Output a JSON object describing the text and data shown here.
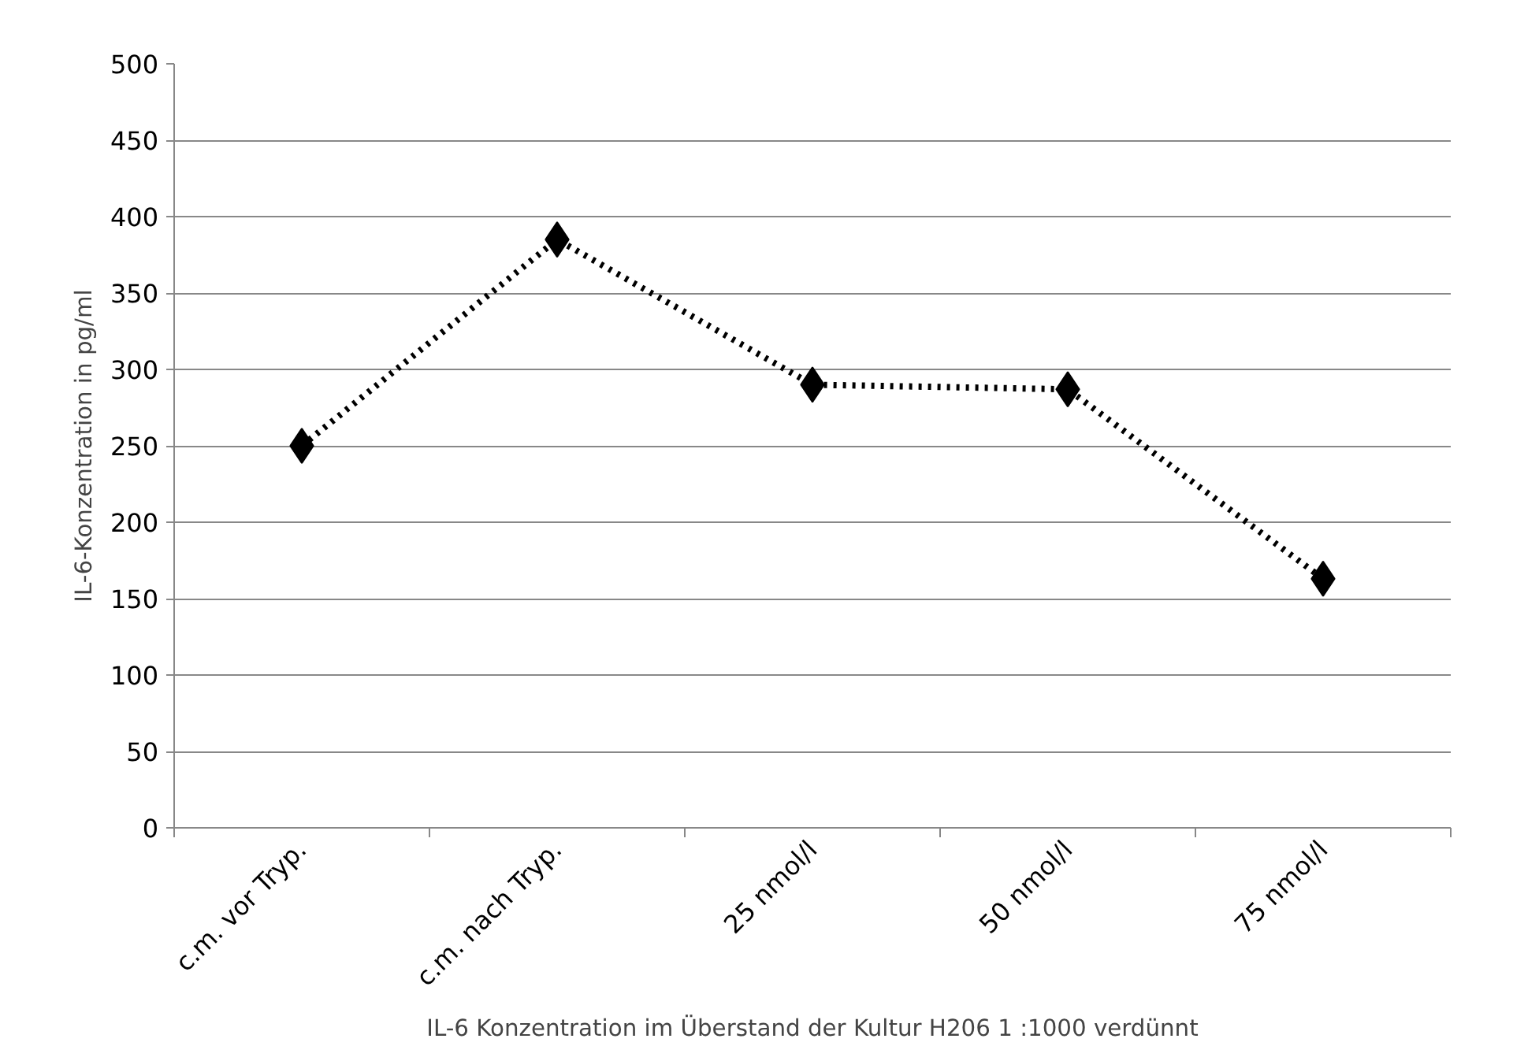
{
  "chart_data": {
    "type": "line",
    "categories": [
      "c.m. vor Tryp.",
      "c.m. nach Tryp.",
      "25 nmol/l",
      "50 nmol/l",
      "75 nmol/l"
    ],
    "series": [
      {
        "color": "#000000",
        "values": [
          250,
          385,
          290,
          287,
          163
        ]
      }
    ],
    "xlabel": "IL-6 Konzentration im Überstand der Kultur H206 1 :1000 verdünnt",
    "ylabel": "IL-6-Konzentration in pg/ml",
    "ylim": [
      0,
      500
    ],
    "yticks": [
      0,
      50,
      100,
      150,
      200,
      250,
      300,
      350,
      400,
      450,
      500
    ],
    "grid": "y",
    "marker": "diamond",
    "line_style": "dotted"
  }
}
